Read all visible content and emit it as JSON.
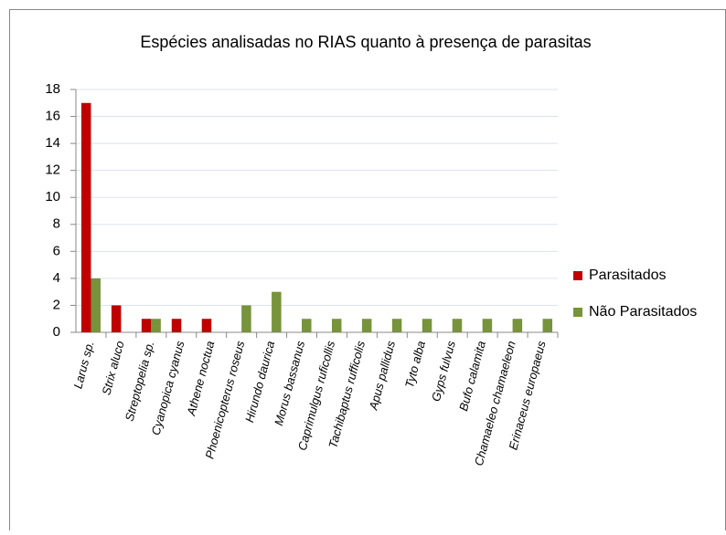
{
  "chart_data": {
    "type": "bar",
    "title": "Espécies analisadas no RIAS quanto à presença de parasitas",
    "categories": [
      "Larus sp.",
      "Strix aluco",
      "Streptopelia sp.",
      "Cyanopica cyanus",
      "Athene noctua",
      "Phoenicopterus roseus",
      "Hirundo daurica",
      "Morus bassanus",
      "Caprimulgus ruficollis",
      "Tachibaptus rufficolis",
      "Apus pallidus",
      "Tyto alba",
      "Gyps fulvus",
      "Bufo calamita",
      "Chamaeleo chamaeleon",
      "Erinaceus europaeus"
    ],
    "series": [
      {
        "name": "Parasitados",
        "color": "#c00000",
        "values": [
          17,
          2,
          1,
          1,
          1,
          0,
          0,
          0,
          0,
          0,
          0,
          0,
          0,
          0,
          0,
          0
        ]
      },
      {
        "name": "Não Parasitados",
        "color": "#77933c",
        "values": [
          4,
          0,
          1,
          0,
          0,
          2,
          3,
          1,
          1,
          1,
          1,
          1,
          1,
          1,
          1,
          1
        ]
      }
    ],
    "ylim": [
      0,
      18
    ],
    "yticks": [
      0,
      2,
      4,
      6,
      8,
      10,
      12,
      14,
      16,
      18
    ],
    "grid": true,
    "legend": "right"
  }
}
